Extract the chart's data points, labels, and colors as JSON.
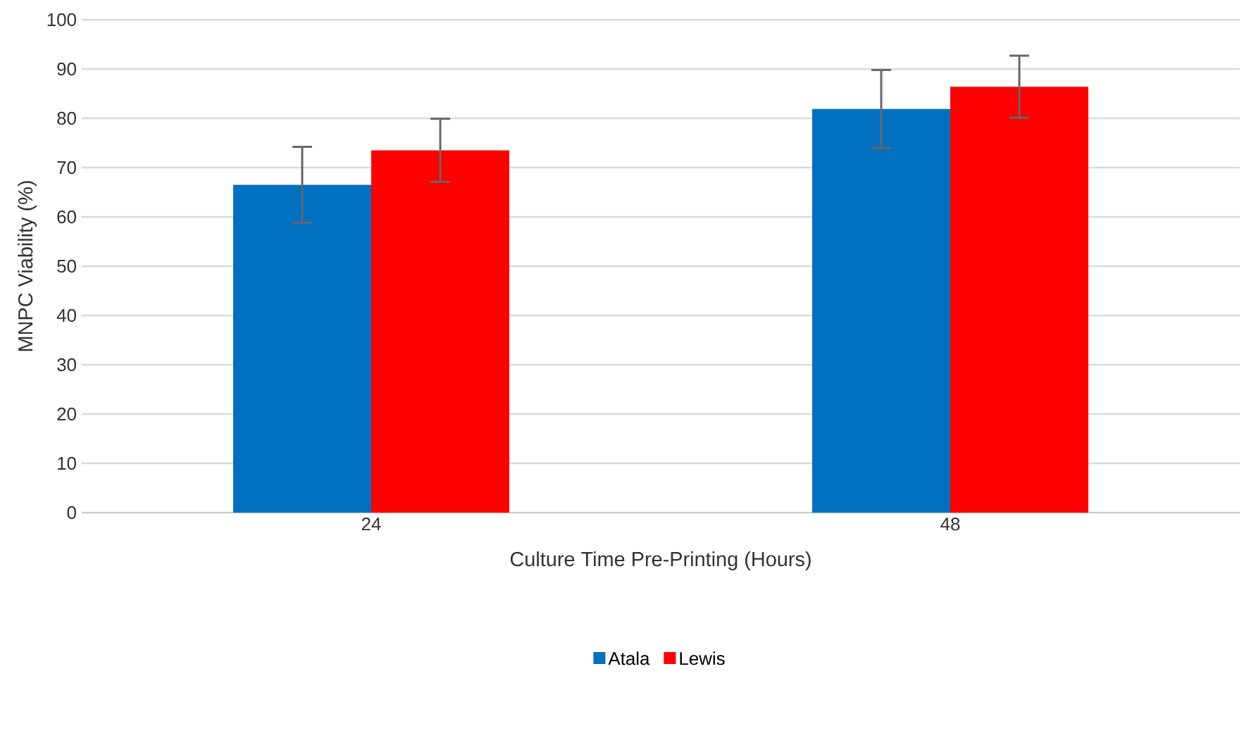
{
  "chart_data": {
    "type": "bar",
    "xlabel": "Culture Time Pre-Printing (Hours)",
    "ylabel": "MNPC Viability (%)",
    "categories": [
      "24",
      "48"
    ],
    "series": [
      {
        "name": "Atala",
        "color": "#0070c0",
        "values": [
          66.5,
          81.9
        ],
        "errors": [
          7.7,
          7.9
        ]
      },
      {
        "name": "Lewis",
        "color": "#ff0000",
        "values": [
          73.5,
          86.4
        ],
        "errors": [
          6.4,
          6.3
        ]
      }
    ],
    "ylim": [
      0,
      100
    ],
    "yticks": [
      0,
      10,
      20,
      30,
      40,
      50,
      60,
      70,
      80,
      90,
      100
    ],
    "grid": "y",
    "legend": "bottom"
  }
}
